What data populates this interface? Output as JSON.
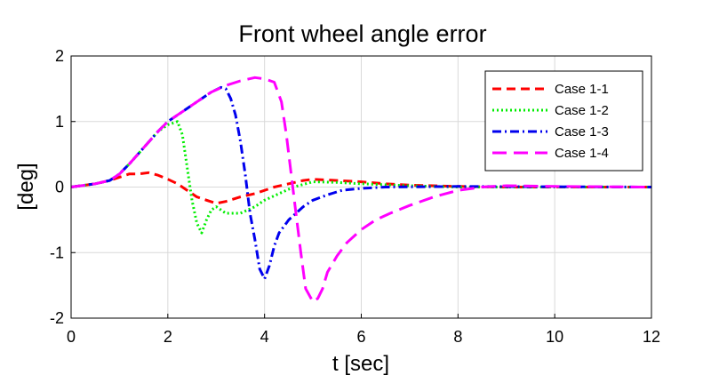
{
  "chart_data": {
    "type": "line",
    "title": "Front wheel angle error",
    "xlabel": "t [sec]",
    "ylabel": "[deg]",
    "xlim": [
      0,
      12
    ],
    "ylim": [
      -2,
      2
    ],
    "xticks": [
      0,
      2,
      4,
      6,
      8,
      10,
      12
    ],
    "yticks": [
      -2,
      -1,
      0,
      1,
      2
    ],
    "grid": true,
    "legend_position": "top-right",
    "series": [
      {
        "name": "Case 1-1",
        "color": "#ff0000",
        "dash": "dashed",
        "points": [
          [
            0,
            0
          ],
          [
            0.5,
            0.05
          ],
          [
            0.8,
            0.1
          ],
          [
            1.0,
            0.15
          ],
          [
            1.2,
            0.2
          ],
          [
            1.4,
            0.2
          ],
          [
            1.6,
            0.22
          ],
          [
            1.8,
            0.18
          ],
          [
            2.0,
            0.12
          ],
          [
            2.2,
            0.05
          ],
          [
            2.4,
            -0.05
          ],
          [
            2.6,
            -0.15
          ],
          [
            2.8,
            -0.2
          ],
          [
            3.0,
            -0.25
          ],
          [
            3.2,
            -0.22
          ],
          [
            3.5,
            -0.15
          ],
          [
            3.8,
            -0.1
          ],
          [
            4.2,
            0.0
          ],
          [
            4.5,
            0.05
          ],
          [
            4.8,
            0.1
          ],
          [
            5.0,
            0.12
          ],
          [
            5.5,
            0.1
          ],
          [
            6.0,
            0.08
          ],
          [
            6.5,
            0.05
          ],
          [
            7.0,
            0.03
          ],
          [
            8.0,
            0.01
          ],
          [
            9.0,
            0.0
          ],
          [
            12.0,
            0.0
          ]
        ]
      },
      {
        "name": "Case 1-2",
        "color": "#00ee00",
        "dash": "dotted",
        "points": [
          [
            0,
            0
          ],
          [
            0.5,
            0.05
          ],
          [
            0.8,
            0.1
          ],
          [
            1.0,
            0.2
          ],
          [
            1.2,
            0.35
          ],
          [
            1.5,
            0.6
          ],
          [
            1.8,
            0.85
          ],
          [
            2.0,
            0.95
          ],
          [
            2.2,
            1.0
          ],
          [
            2.3,
            0.8
          ],
          [
            2.4,
            0.3
          ],
          [
            2.5,
            -0.2
          ],
          [
            2.6,
            -0.55
          ],
          [
            2.7,
            -0.7
          ],
          [
            2.8,
            -0.5
          ],
          [
            2.9,
            -0.35
          ],
          [
            3.0,
            -0.3
          ],
          [
            3.2,
            -0.4
          ],
          [
            3.5,
            -0.4
          ],
          [
            3.8,
            -0.3
          ],
          [
            4.0,
            -0.2
          ],
          [
            4.3,
            -0.1
          ],
          [
            4.6,
            0.0
          ],
          [
            5.0,
            0.08
          ],
          [
            5.5,
            0.07
          ],
          [
            6.0,
            0.05
          ],
          [
            7.0,
            0.02
          ],
          [
            8.0,
            0.0
          ],
          [
            12.0,
            0.0
          ]
        ]
      },
      {
        "name": "Case 1-3",
        "color": "#0000ee",
        "dash": "dashdot",
        "points": [
          [
            0,
            0
          ],
          [
            0.5,
            0.05
          ],
          [
            0.8,
            0.1
          ],
          [
            1.0,
            0.2
          ],
          [
            1.2,
            0.35
          ],
          [
            1.5,
            0.6
          ],
          [
            1.8,
            0.85
          ],
          [
            2.0,
            1.0
          ],
          [
            2.3,
            1.15
          ],
          [
            2.6,
            1.3
          ],
          [
            2.9,
            1.45
          ],
          [
            3.1,
            1.52
          ],
          [
            3.2,
            1.5
          ],
          [
            3.3,
            1.35
          ],
          [
            3.4,
            1.1
          ],
          [
            3.5,
            0.7
          ],
          [
            3.6,
            0.2
          ],
          [
            3.7,
            -0.4
          ],
          [
            3.8,
            -0.8
          ],
          [
            3.9,
            -1.25
          ],
          [
            4.0,
            -1.4
          ],
          [
            4.1,
            -1.2
          ],
          [
            4.2,
            -0.9
          ],
          [
            4.3,
            -0.7
          ],
          [
            4.5,
            -0.5
          ],
          [
            4.8,
            -0.3
          ],
          [
            5.0,
            -0.2
          ],
          [
            5.3,
            -0.12
          ],
          [
            5.6,
            -0.05
          ],
          [
            6.0,
            -0.02
          ],
          [
            6.5,
            0.0
          ],
          [
            8.0,
            0.01
          ],
          [
            12.0,
            0.0
          ]
        ]
      },
      {
        "name": "Case 1-4",
        "color": "#ff00ff",
        "dash": "longdash",
        "points": [
          [
            0,
            0
          ],
          [
            0.5,
            0.05
          ],
          [
            0.8,
            0.1
          ],
          [
            1.0,
            0.2
          ],
          [
            1.2,
            0.35
          ],
          [
            1.5,
            0.6
          ],
          [
            1.8,
            0.85
          ],
          [
            2.0,
            1.0
          ],
          [
            2.3,
            1.15
          ],
          [
            2.6,
            1.3
          ],
          [
            2.9,
            1.45
          ],
          [
            3.2,
            1.55
          ],
          [
            3.5,
            1.62
          ],
          [
            3.8,
            1.67
          ],
          [
            4.0,
            1.65
          ],
          [
            4.2,
            1.6
          ],
          [
            4.35,
            1.3
          ],
          [
            4.45,
            0.8
          ],
          [
            4.55,
            0.2
          ],
          [
            4.65,
            -0.4
          ],
          [
            4.75,
            -1.0
          ],
          [
            4.85,
            -1.55
          ],
          [
            5.0,
            -1.75
          ],
          [
            5.1,
            -1.7
          ],
          [
            5.2,
            -1.55
          ],
          [
            5.3,
            -1.3
          ],
          [
            5.5,
            -1.05
          ],
          [
            5.7,
            -0.85
          ],
          [
            6.0,
            -0.65
          ],
          [
            6.3,
            -0.5
          ],
          [
            6.6,
            -0.4
          ],
          [
            7.0,
            -0.28
          ],
          [
            7.5,
            -0.15
          ],
          [
            8.0,
            -0.05
          ],
          [
            8.5,
            0.0
          ],
          [
            9.0,
            0.02
          ],
          [
            10.0,
            0.01
          ],
          [
            12.0,
            0.0
          ]
        ]
      }
    ]
  }
}
